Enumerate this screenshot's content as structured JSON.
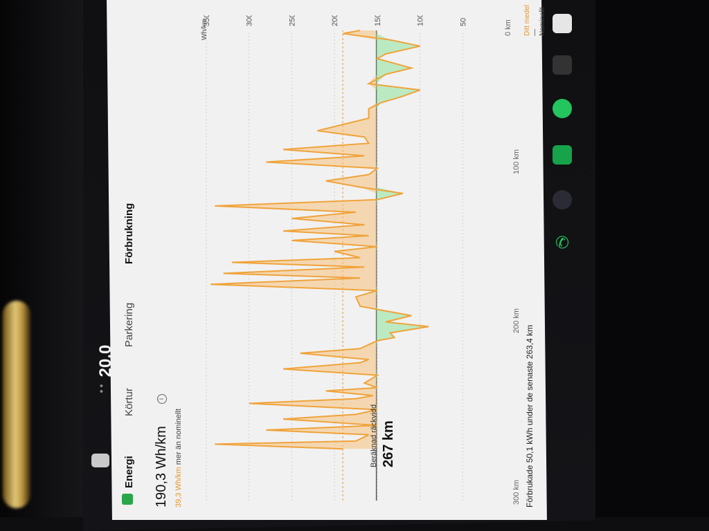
{
  "app": {
    "tabs": [
      {
        "label": "Energi"
      },
      {
        "label": "Körtur"
      },
      {
        "label": "Parkering"
      },
      {
        "label": "Förbrukning"
      }
    ]
  },
  "summary": {
    "average": "190,3 Wh/km",
    "delta_prefix": "39,3 Wh/km",
    "delta_suffix": "mer än nominellt",
    "estimated_range_label": "Beräknad räckvidd",
    "estimated_range_value": "267 km",
    "footer": "Förbrukade 50,1 kWh under de senaste 263,4 km"
  },
  "status": {
    "temperature": "20,0"
  },
  "legend": {
    "avg": "Ditt medel",
    "nominal": "Nominellt"
  },
  "colors": {
    "orange": "#f0a33a",
    "orange_fill": "#f6c17c",
    "green": "#47c95a",
    "green_fill": "#8ee39a",
    "panel": "#f1f1f1"
  },
  "chart_data": {
    "type": "area",
    "title": "",
    "xlabel": "",
    "ylabel": "Wh/km",
    "x_ticks": [
      "300 km",
      "200 km",
      "100 km",
      "0 km"
    ],
    "y_ticks": [
      50,
      100,
      150,
      200,
      250,
      300,
      350
    ],
    "xlim": [
      300,
      0
    ],
    "ylim": [
      0,
      350
    ],
    "series": [
      {
        "name": "Förbrukning",
        "color": "#f0a33a",
        "points": [
          [
            267,
            190
          ],
          [
            264,
            340
          ],
          [
            262,
            175
          ],
          [
            258,
            160
          ],
          [
            255,
            280
          ],
          [
            252,
            150
          ],
          [
            248,
            260
          ],
          [
            245,
            175
          ],
          [
            242,
            150
          ],
          [
            238,
            300
          ],
          [
            235,
            175
          ],
          [
            233,
            155
          ],
          [
            230,
            210
          ],
          [
            228,
            150
          ],
          [
            225,
            165
          ],
          [
            220,
            150
          ],
          [
            216,
            260
          ],
          [
            212,
            170
          ],
          [
            210,
            160
          ],
          [
            206,
            240
          ],
          [
            203,
            170
          ],
          [
            198,
            150
          ],
          [
            196,
            130
          ],
          [
            193,
            135
          ],
          [
            189,
            90
          ],
          [
            186,
            140
          ],
          [
            182,
            110
          ],
          [
            178,
            150
          ],
          [
            176,
            170
          ],
          [
            170,
            175
          ],
          [
            166,
            150
          ],
          [
            162,
            345
          ],
          [
            158,
            170
          ],
          [
            155,
            330
          ],
          [
            151,
            165
          ],
          [
            148,
            320
          ],
          [
            145,
            170
          ],
          [
            141,
            200
          ],
          [
            138,
            150
          ],
          [
            134,
            250
          ],
          [
            131,
            160
          ],
          [
            128,
            260
          ],
          [
            124,
            165
          ],
          [
            120,
            250
          ],
          [
            116,
            175
          ],
          [
            112,
            340
          ],
          [
            108,
            150
          ],
          [
            104,
            120
          ],
          [
            100,
            170
          ],
          [
            96,
            210
          ],
          [
            92,
            160
          ],
          [
            88,
            150
          ],
          [
            84,
            280
          ],
          [
            80,
            165
          ],
          [
            76,
            260
          ],
          [
            72,
            160
          ],
          [
            68,
            165
          ],
          [
            64,
            220
          ],
          [
            60,
            190
          ],
          [
            56,
            160
          ],
          [
            50,
            160
          ],
          [
            46,
            145
          ],
          [
            42,
            120
          ],
          [
            38,
            100
          ],
          [
            34,
            160
          ],
          [
            28,
            140
          ],
          [
            24,
            110
          ],
          [
            18,
            150
          ],
          [
            15,
            140
          ],
          [
            10,
            100
          ],
          [
            6,
            135
          ],
          [
            2,
            190
          ],
          [
            0,
            170
          ]
        ]
      }
    ],
    "baseline_nominal": 151,
    "avg_line": 190.3
  }
}
